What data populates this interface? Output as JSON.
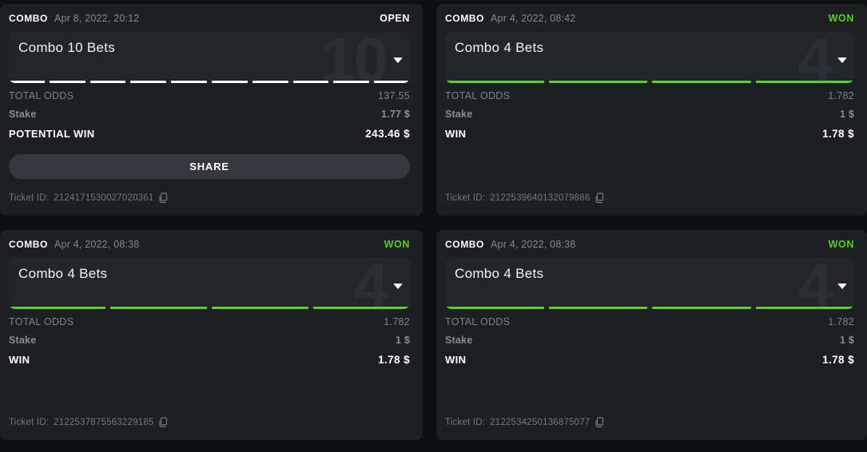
{
  "colors": {
    "status_open": "#ffffff",
    "status_won": "#53d01d",
    "segment_open": "#ffffff",
    "segment_won": "#5bd128",
    "card_bg": "#1d1f23",
    "panel_bg": "#232529",
    "page_bg": "#0e0f11"
  },
  "cards": [
    {
      "type_label": "COMBO",
      "datetime": "Apr 8, 2022, 20:12",
      "status": "OPEN",
      "status_color": "#ffffff",
      "title": "Combo 10 Bets",
      "big_number": "10",
      "progress": {
        "count": 10,
        "color": "#ffffff"
      },
      "total_odds_label": "TOTAL ODDS",
      "total_odds_value": "137.55",
      "stake_label": "Stake",
      "stake_value": "1.77 $",
      "win_label": "POTENTIAL WIN",
      "win_value": "243.46 $",
      "share_label": "SHARE",
      "ticket_label": "Ticket ID:",
      "ticket_id": "2124171530027020361"
    },
    {
      "type_label": "COMBO",
      "datetime": "Apr 4, 2022, 08:42",
      "status": "WON",
      "status_color": "#53d01d",
      "title": "Combo 4 Bets",
      "big_number": "4",
      "progress": {
        "count": 4,
        "color": "#5bd128"
      },
      "total_odds_label": "TOTAL ODDS",
      "total_odds_value": "1.782",
      "stake_label": "Stake",
      "stake_value": "1 $",
      "win_label": "WIN",
      "win_value": "1.78 $",
      "ticket_label": "Ticket ID:",
      "ticket_id": "2122539640132079886"
    },
    {
      "type_label": "COMBO",
      "datetime": "Apr 4, 2022, 08:38",
      "status": "WON",
      "status_color": "#53d01d",
      "title": "Combo 4 Bets",
      "big_number": "4",
      "progress": {
        "count": 4,
        "color": "#5bd128"
      },
      "total_odds_label": "TOTAL ODDS",
      "total_odds_value": "1.782",
      "stake_label": "Stake",
      "stake_value": "1 $",
      "win_label": "WIN",
      "win_value": "1.78 $",
      "ticket_label": "Ticket ID:",
      "ticket_id": "2122537875563229185"
    },
    {
      "type_label": "COMBO",
      "datetime": "Apr 4, 2022, 08:38",
      "status": "WON",
      "status_color": "#53d01d",
      "title": "Combo 4 Bets",
      "big_number": "4",
      "progress": {
        "count": 4,
        "color": "#5bd128"
      },
      "total_odds_label": "TOTAL ODDS",
      "total_odds_value": "1.782",
      "stake_label": "Stake",
      "stake_value": "1 $",
      "win_label": "WIN",
      "win_value": "1.78 $",
      "ticket_label": "Ticket ID:",
      "ticket_id": "2122534250136875077"
    }
  ]
}
